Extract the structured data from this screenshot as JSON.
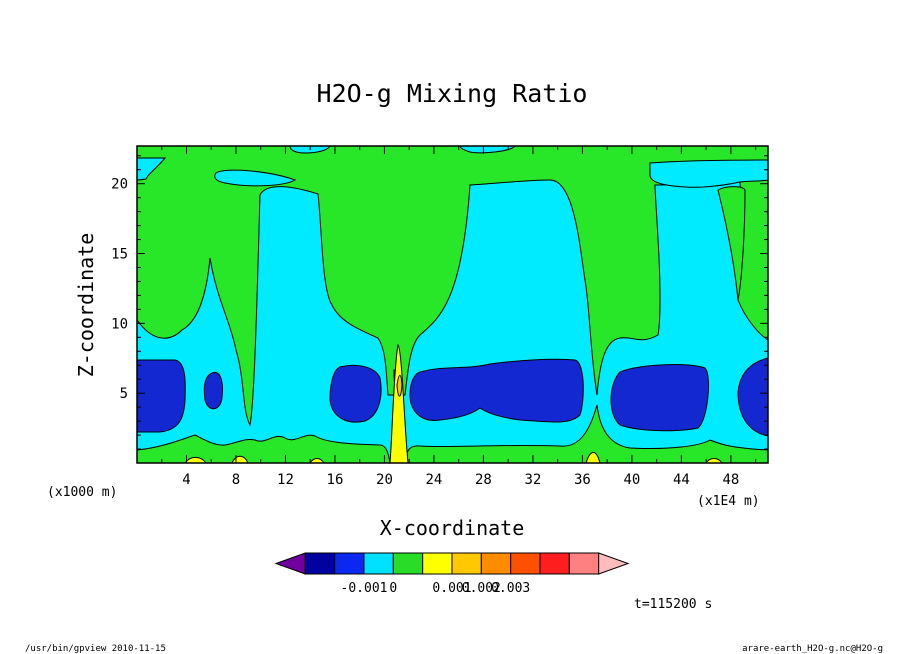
{
  "chart_data": {
    "type": "contour",
    "title": "H2O-g Mixing Ratio",
    "xlabel": "X-coordinate",
    "ylabel": "Z-coordinate",
    "x_unit": "(x1E4 m)",
    "y_unit": "(x1000 m)",
    "xlim": [
      0,
      51
    ],
    "ylim": [
      0,
      22.7
    ],
    "x_ticks": [
      4,
      8,
      12,
      16,
      20,
      24,
      28,
      32,
      36,
      40,
      44,
      48
    ],
    "y_ticks": [
      5,
      10,
      15,
      20
    ],
    "time_label": "t=115200 s",
    "colorbar": {
      "colors": [
        "#7000a0",
        "#0000a0",
        "#0a28f0",
        "#00e0ff",
        "#28dc28",
        "#ffff00",
        "#ffc800",
        "#ff8c00",
        "#ff5000",
        "#ff1e1e",
        "#ff8080",
        "#ffbcbc"
      ],
      "tick_labels": [
        "-0.001",
        "0",
        "0.001",
        "0.002",
        "0.003"
      ],
      "tick_boundaries": [
        3,
        4,
        6,
        7,
        8
      ]
    },
    "colors": {
      "deep_blue": "#1428d2",
      "cyan": "#00ebff",
      "green": "#28e628",
      "yellow": "#ffff00",
      "orange": "#ffc800"
    }
  },
  "footer": {
    "left": "/usr/bin/gpview   2010-11-15",
    "right": "arare-earth_H2O-g.nc@H2O-g"
  }
}
